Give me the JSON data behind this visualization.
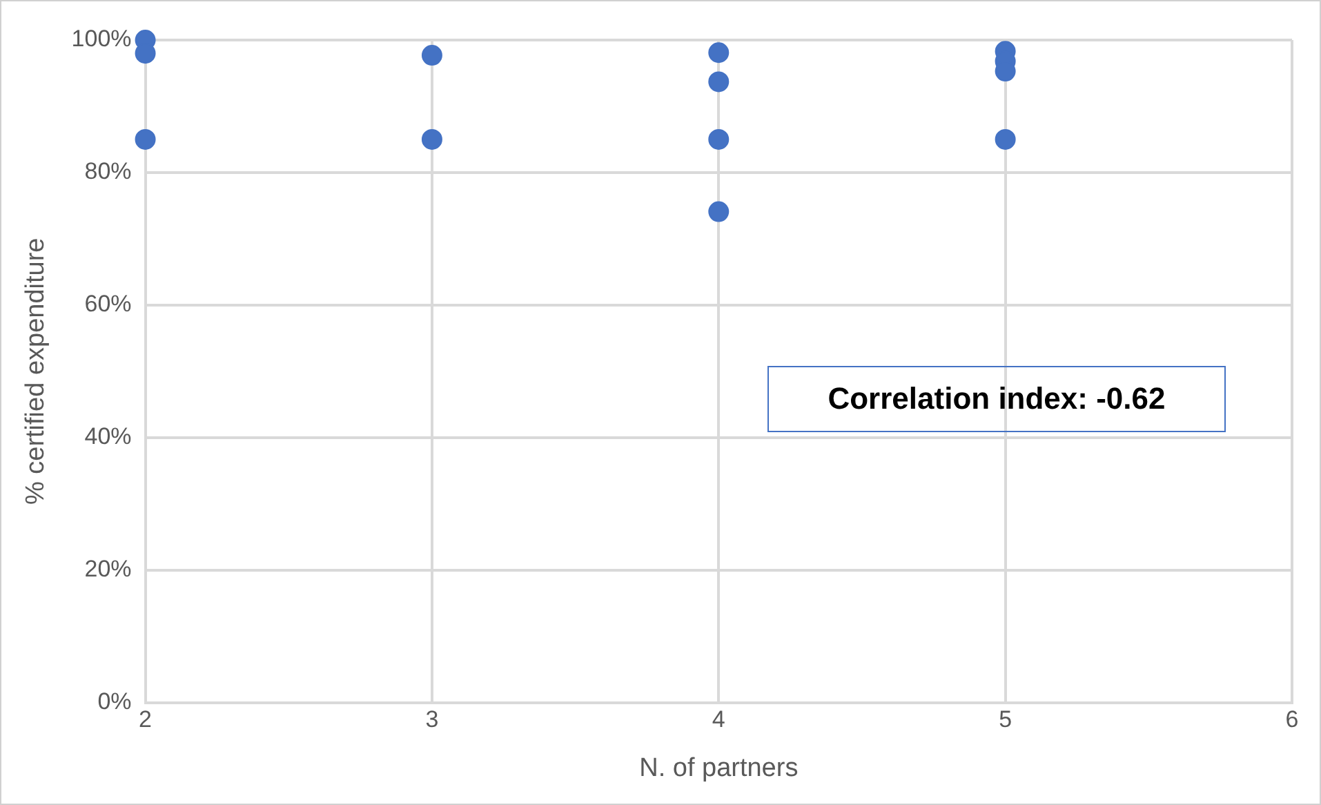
{
  "chart_data": {
    "type": "scatter",
    "xlabel": "N. of partners",
    "ylabel": "% certified expenditure",
    "x": [
      2,
      2,
      2,
      3,
      3,
      4,
      4,
      4,
      4,
      5,
      5,
      5,
      5
    ],
    "series": [
      {
        "color": "#4472c4",
        "values": [
          100,
          98,
          85,
          97.7,
          85,
          98.1,
          93.7,
          85,
          74.1,
          98.3,
          96.8,
          95.3,
          85
        ]
      }
    ],
    "xlim": [
      2,
      6
    ],
    "xticks": [
      2,
      3,
      4,
      5,
      6
    ],
    "ylim": [
      0,
      100
    ],
    "yticks": [
      {
        "value": 0,
        "label": "0%"
      },
      {
        "value": 20,
        "label": "20%"
      },
      {
        "value": 40,
        "label": "40%"
      },
      {
        "value": 60,
        "label": "60%"
      },
      {
        "value": 80,
        "label": "80%"
      },
      {
        "value": 100,
        "label": "100%"
      }
    ],
    "grid": true,
    "marker": "circle",
    "legend": false,
    "annotations": [
      "Correlation index: -0.62"
    ]
  }
}
